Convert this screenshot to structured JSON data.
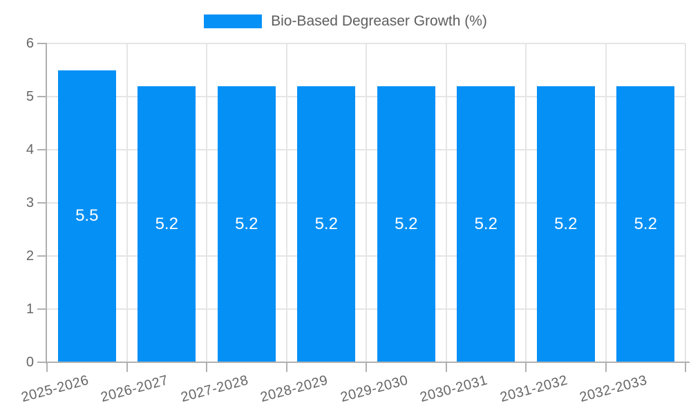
{
  "chart_data": {
    "type": "bar",
    "title": "",
    "legend": "Bio-Based Degreaser Growth (%)",
    "categories": [
      "2025-2026",
      "2026-2027",
      "2027-2028",
      "2028-2029",
      "2029-2030",
      "2030-2031",
      "2031-2032",
      "2032-2033"
    ],
    "values": [
      5.5,
      5.2,
      5.2,
      5.2,
      5.2,
      5.2,
      5.2,
      5.2
    ],
    "value_labels": [
      "5.5",
      "5.2",
      "5.2",
      "5.2",
      "5.2",
      "5.2",
      "5.2",
      "5.2"
    ],
    "xlabel": "",
    "ylabel": "",
    "ylim": [
      0,
      6
    ],
    "yticks": [
      0,
      1,
      2,
      3,
      4,
      5,
      6
    ],
    "grid": true,
    "legend_position": "top-center",
    "colors": {
      "bar": "#0590f6",
      "bar_label": "#ffffff",
      "axis": "#b0b0b0",
      "grid": "#e5e5e5",
      "text": "#666666",
      "legend_text": "#5e5e5e"
    }
  }
}
